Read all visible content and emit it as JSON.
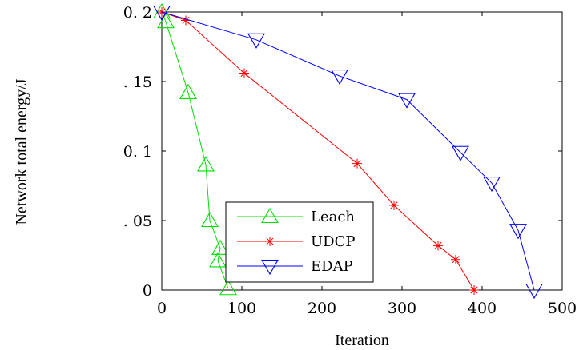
{
  "chart_data": {
    "type": "line",
    "title": "",
    "xlabel": "Iteration",
    "ylabel": "Network total energy/J",
    "xlim": [
      0,
      500
    ],
    "ylim": [
      0,
      0.2
    ],
    "x_ticks": [
      "0",
      "100",
      "200",
      "300",
      "400",
      "500"
    ],
    "y_ticks": [
      "0",
      "0.05",
      "0.1",
      "0.15",
      "0.2"
    ],
    "y_ticks_display": [
      "0",
      ". 05",
      "0. 1",
      ". 15",
      "0. 2"
    ],
    "grid": false,
    "legend_position": "lower-center",
    "series": [
      {
        "name": "Leach",
        "color": "#00e000",
        "marker": "triangle-up",
        "x": [
          0,
          5,
          33,
          55,
          60,
          73,
          70,
          83
        ],
        "y": [
          0.2,
          0.193,
          0.142,
          0.09,
          0.05,
          0.03,
          0.021,
          0.001
        ]
      },
      {
        "name": "UDCP",
        "color": "#ff0000",
        "marker": "star",
        "x": [
          0,
          30,
          103,
          244,
          290,
          345,
          367,
          390
        ],
        "y": [
          0.2,
          0.194,
          0.156,
          0.091,
          0.061,
          0.032,
          0.022,
          0
        ]
      },
      {
        "name": "EDAP",
        "color": "#0000ff",
        "marker": "triangle-down",
        "x": [
          0,
          118,
          222,
          306,
          373,
          412,
          445,
          465
        ],
        "y": [
          0.2,
          0.18,
          0.154,
          0.137,
          0.099,
          0.077,
          0.043,
          0
        ]
      }
    ]
  }
}
